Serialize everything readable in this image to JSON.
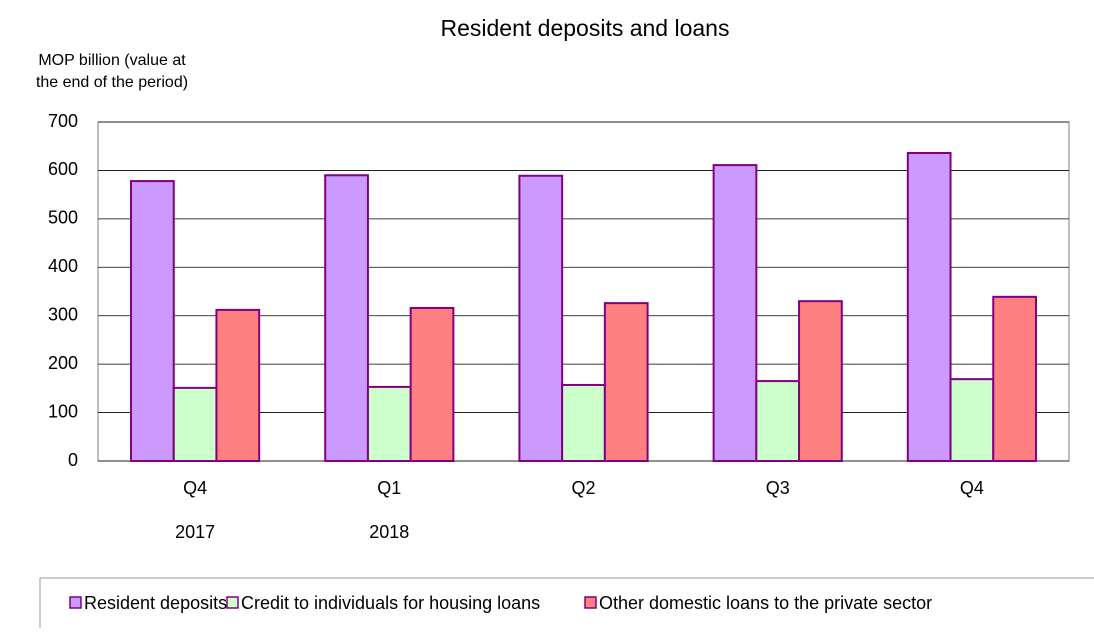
{
  "chart_data": {
    "type": "bar",
    "title": "Resident deposits and loans",
    "y_label": [
      "MOP billion (value at",
      "the end of the period)"
    ],
    "categories": [
      "Q4",
      "Q1",
      "Q2",
      "Q3",
      "Q4"
    ],
    "category_groups": [
      "2017",
      "2018",
      null,
      null,
      null
    ],
    "series": [
      {
        "name": "Resident deposits",
        "color": "#cc99ff",
        "values": [
          578,
          590,
          589,
          611,
          636
        ]
      },
      {
        "name": "Credit to individuals for housing loans",
        "color": "#ccffcc",
        "values": [
          151,
          153,
          157,
          165,
          169
        ]
      },
      {
        "name": "Other domestic loans to the private sector",
        "color": "#ff8080",
        "values": [
          312,
          316,
          326,
          330,
          339
        ]
      }
    ],
    "bar_edge_color": "#800080",
    "ylim": [
      0,
      700
    ],
    "yticks": [
      0,
      100,
      200,
      300,
      400,
      500,
      600,
      700
    ],
    "grid": true,
    "legend": "bottom"
  }
}
